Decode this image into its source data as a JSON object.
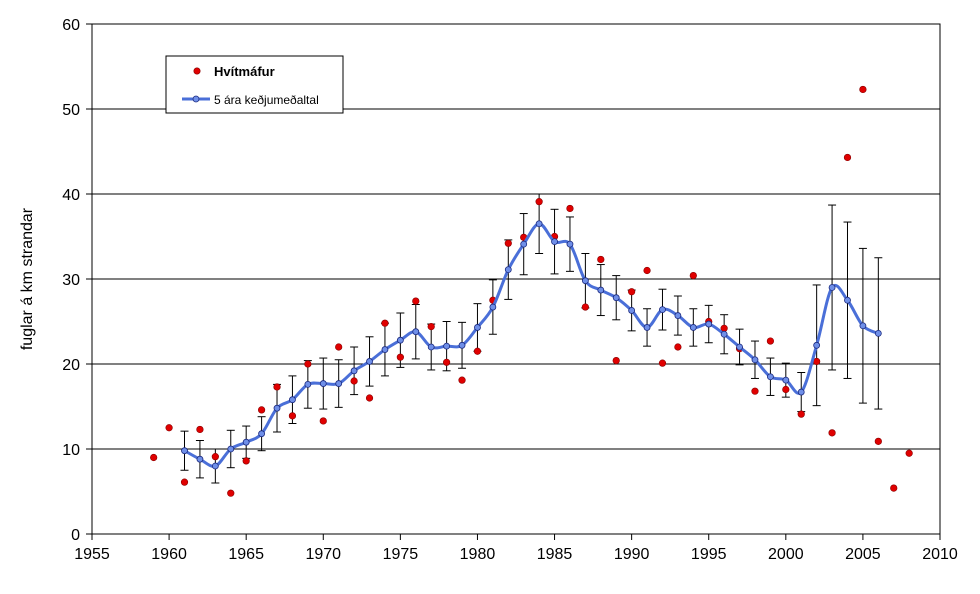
{
  "chart_data": {
    "type": "scatter",
    "ylabel": "fuglar á km strandar",
    "xlim": [
      1955,
      2010
    ],
    "ylim": [
      0,
      60
    ],
    "x_ticks": [
      "1955",
      "1960",
      "1965",
      "1970",
      "1975",
      "1980",
      "1985",
      "1990",
      "1995",
      "2000",
      "2005",
      "2010"
    ],
    "y_ticks": [
      "0",
      "10",
      "20",
      "30",
      "40",
      "50",
      "60"
    ],
    "grid": "horizontal",
    "legend_position": "top-left",
    "series": [
      {
        "name": "Hvítmáfur",
        "kind": "points",
        "color": "#e00000",
        "points": [
          [
            1959,
            9.0
          ],
          [
            1960,
            12.5
          ],
          [
            1961,
            6.1
          ],
          [
            1962,
            12.3
          ],
          [
            1963,
            9.1
          ],
          [
            1964,
            4.8
          ],
          [
            1965,
            8.6
          ],
          [
            1966,
            14.6
          ],
          [
            1967,
            17.3
          ],
          [
            1968,
            13.9
          ],
          [
            1969,
            20.0
          ],
          [
            1970,
            13.3
          ],
          [
            1971,
            22.0
          ],
          [
            1972,
            18.0
          ],
          [
            1973,
            16.0
          ],
          [
            1974,
            24.8
          ],
          [
            1975,
            20.8
          ],
          [
            1976,
            27.4
          ],
          [
            1977,
            24.4
          ],
          [
            1978,
            20.2
          ],
          [
            1979,
            18.1
          ],
          [
            1980,
            21.5
          ],
          [
            1981,
            27.5
          ],
          [
            1982,
            34.2
          ],
          [
            1983,
            34.9
          ],
          [
            1984,
            39.1
          ],
          [
            1985,
            35.0
          ],
          [
            1986,
            38.3
          ],
          [
            1987,
            26.7
          ],
          [
            1988,
            32.3
          ],
          [
            1989,
            20.4
          ],
          [
            1990,
            28.5
          ],
          [
            1991,
            31.0
          ],
          [
            1992,
            20.1
          ],
          [
            1993,
            22.0
          ],
          [
            1994,
            30.4
          ],
          [
            1995,
            25.0
          ],
          [
            1996,
            24.2
          ],
          [
            1997,
            21.8
          ],
          [
            1998,
            16.8
          ],
          [
            1999,
            22.7
          ],
          [
            2000,
            17.0
          ],
          [
            2001,
            14.1
          ],
          [
            2002,
            20.3
          ],
          [
            2003,
            11.9
          ],
          [
            2004,
            44.3
          ],
          [
            2005,
            52.3
          ],
          [
            2006,
            10.9
          ],
          [
            2007,
            5.4
          ],
          [
            2008,
            9.5
          ]
        ]
      },
      {
        "name": "5 ára keðjumeðaltal",
        "kind": "smoothed-line",
        "color": "#4a6fd8",
        "points": [
          [
            1961,
            9.8,
            2.3
          ],
          [
            1962,
            8.8,
            2.2
          ],
          [
            1963,
            8.0,
            2.0
          ],
          [
            1964,
            10.0,
            2.2
          ],
          [
            1965,
            10.8,
            1.9
          ],
          [
            1966,
            11.8,
            2.0
          ],
          [
            1967,
            14.8,
            2.8
          ],
          [
            1968,
            15.8,
            2.8
          ],
          [
            1969,
            17.6,
            2.8
          ],
          [
            1970,
            17.7,
            3.0
          ],
          [
            1971,
            17.7,
            2.8
          ],
          [
            1972,
            19.2,
            2.8
          ],
          [
            1973,
            20.3,
            2.9
          ],
          [
            1974,
            21.7,
            3.1
          ],
          [
            1975,
            22.8,
            3.2
          ],
          [
            1976,
            23.8,
            3.2
          ],
          [
            1977,
            22.0,
            2.7
          ],
          [
            1978,
            22.1,
            2.9
          ],
          [
            1979,
            22.2,
            2.7
          ],
          [
            1980,
            24.3,
            2.8
          ],
          [
            1981,
            26.7,
            3.2
          ],
          [
            1982,
            31.1,
            3.5
          ],
          [
            1983,
            34.1,
            3.6
          ],
          [
            1984,
            36.5,
            3.5
          ],
          [
            1985,
            34.4,
            3.8
          ],
          [
            1986,
            34.1,
            3.2
          ],
          [
            1987,
            29.8,
            3.2
          ],
          [
            1988,
            28.7,
            3.0
          ],
          [
            1989,
            27.8,
            2.6
          ],
          [
            1990,
            26.3,
            2.4
          ],
          [
            1991,
            24.3,
            2.2
          ],
          [
            1992,
            26.4,
            2.4
          ],
          [
            1993,
            25.7,
            2.3
          ],
          [
            1994,
            24.3,
            2.2
          ],
          [
            1995,
            24.7,
            2.2
          ],
          [
            1996,
            23.5,
            2.3
          ],
          [
            1997,
            22.0,
            2.1
          ],
          [
            1998,
            20.5,
            2.2
          ],
          [
            1999,
            18.5,
            2.2
          ],
          [
            2000,
            18.1,
            2.0
          ],
          [
            2001,
            16.7,
            2.3
          ],
          [
            2002,
            22.2,
            7.1
          ],
          [
            2003,
            29.0,
            9.7
          ],
          [
            2004,
            27.5,
            9.2
          ],
          [
            2005,
            24.5,
            9.1
          ],
          [
            2006,
            23.6,
            8.9
          ]
        ]
      }
    ]
  },
  "legend": {
    "items": [
      {
        "label": "Hvítmáfur",
        "marker": "red-dot"
      },
      {
        "label": "5 ára keðjumeðaltal",
        "marker": "blue-line-with-dot"
      }
    ]
  }
}
